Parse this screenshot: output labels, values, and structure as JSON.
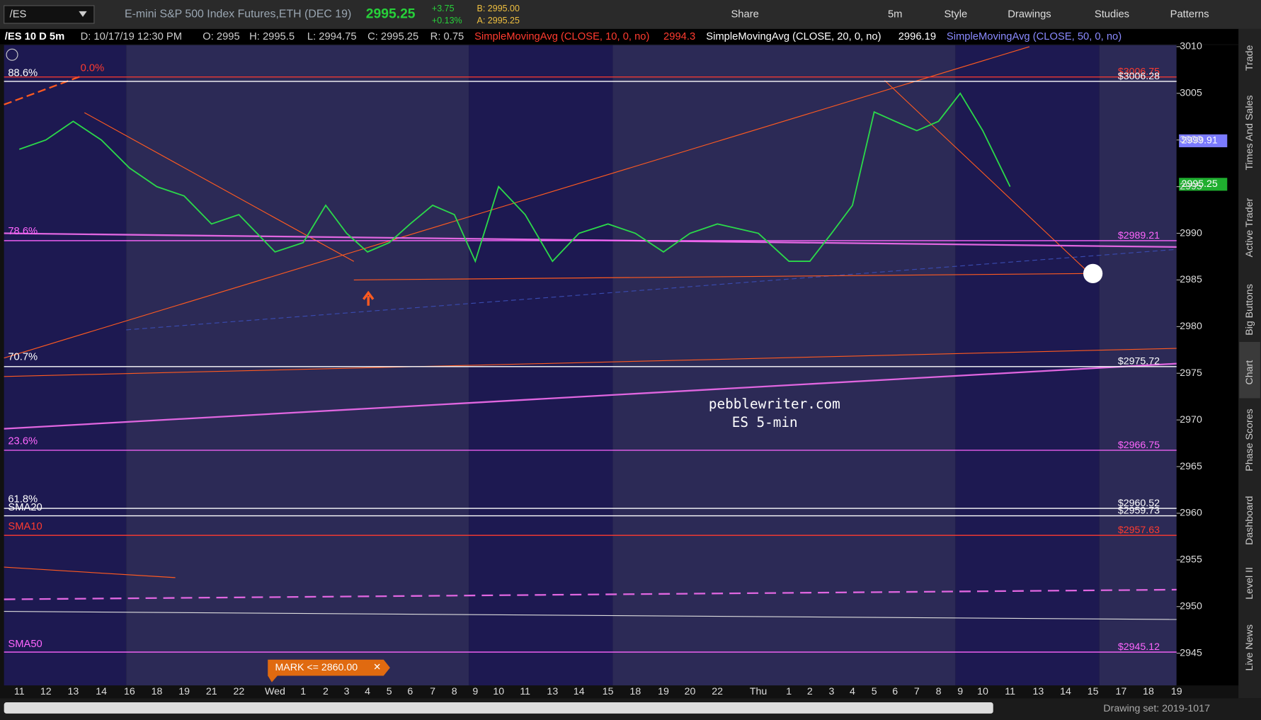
{
  "toolbar": {
    "symbol": "/ES",
    "description": "E-mini S&P 500 Index Futures,ETH (DEC 19)",
    "last": "2995.25",
    "change": "+3.75",
    "change_pct": "+0.13%",
    "bid": "B: 2995.00",
    "ask": "A: 2995.25",
    "buttons": [
      "Share",
      "5m",
      "Style",
      "Drawings",
      "Studies",
      "Patterns"
    ]
  },
  "study_line": {
    "symbol": "/ES 10 D 5m",
    "date": "D: 10/17/19 12:30 PM",
    "open": "O: 2995",
    "high": "H: 2995.5",
    "low": "L: 2994.75",
    "close": "C: 2995.25",
    "range": "R: 0.75",
    "sma10": "SimpleMovingAvg (CLOSE, 10, 0, no)",
    "sma10_value": "2994.3",
    "sma20": "SimpleMovingAvg (CLOSE, 20, 0, no)",
    "sma20_value": "2996.19",
    "sma50": "SimpleMovingAvg (CLOSE, 50, 0, no)"
  },
  "chart": {
    "yticks": [
      3010,
      3005,
      3000,
      2995,
      2990,
      2985,
      2980,
      2975,
      2970,
      2965,
      2960,
      2955,
      2950,
      2945
    ],
    "x_labels": [
      "11",
      "12",
      "13",
      "14",
      "16",
      "18",
      "19",
      "21",
      "22",
      "Wed",
      "1",
      "2",
      "3",
      "4",
      "5",
      "6",
      "7",
      "8",
      "9",
      "10",
      "11",
      "13",
      "14",
      "15",
      "18",
      "19",
      "20",
      "22",
      "Thu",
      "1",
      "2",
      "3",
      "4",
      "5",
      "6",
      "7",
      "8",
      "9",
      "10",
      "11",
      "13",
      "14",
      "15",
      "17",
      "18",
      "19"
    ],
    "closes": [
      2999,
      3000,
      3002,
      3000,
      2997,
      2995,
      2994,
      2991,
      2992,
      2988,
      2989,
      2993,
      2990,
      2988,
      2989,
      2991,
      2993,
      2992,
      2987,
      2995,
      2992,
      2987,
      2990,
      2991,
      2990,
      2988,
      2990,
      2991,
      2990,
      2987,
      2987,
      2990,
      2993,
      3003,
      3002,
      3001,
      3002,
      3005,
      3001,
      2995,
      null,
      null,
      null,
      null,
      null,
      null
    ],
    "price_labels": [
      {
        "value": 3006.75,
        "label": "$3006.75",
        "color": "#ff3b2f",
        "style": "text"
      },
      {
        "value": 3006.28,
        "label": "$3006.28",
        "color": "#ffffff",
        "style": "text"
      },
      {
        "value": 2999.91,
        "label": "2999.91",
        "color": "#7b7bff",
        "style": "box"
      },
      {
        "value": 2995.25,
        "label": "2995.25",
        "color": "#1fae2f",
        "style": "box"
      },
      {
        "value": 2989.21,
        "label": "$2989.21",
        "color": "#ff66ff",
        "style": "text"
      },
      {
        "value": 2975.72,
        "label": "$2975.72",
        "color": "#ffffff",
        "style": "text"
      },
      {
        "value": 2966.75,
        "label": "$2966.75",
        "color": "#ff66ff",
        "style": "text"
      },
      {
        "value": 2960.52,
        "label": "$2960.52",
        "color": "#ffffff",
        "style": "text"
      },
      {
        "value": 2959.73,
        "label": "$2959.73",
        "color": "#ffffff",
        "style": "text"
      },
      {
        "value": 2957.63,
        "label": "$2957.63",
        "color": "#ff3b2f",
        "style": "text"
      },
      {
        "value": 2945.12,
        "label": "$2945.12",
        "color": "#ff66ff",
        "style": "text"
      }
    ],
    "left_labels": [
      "0.0%",
      "88.6%",
      "78.6%",
      "70.7%",
      "23.6%",
      "61.8%",
      "SMA20",
      "SMA10",
      "SMA50"
    ],
    "watermark": [
      "pebblewriter.com",
      "ES 5-min"
    ],
    "mark": "MARK <= 2860.00"
  },
  "side_tabs": [
    "Trade",
    "Times And Sales",
    "Active Trader",
    "Big Buttons",
    "Chart",
    "Phase Scores",
    "Dashboard",
    "Level II",
    "Live News"
  ],
  "status": "Drawing set: 2019-1017"
}
